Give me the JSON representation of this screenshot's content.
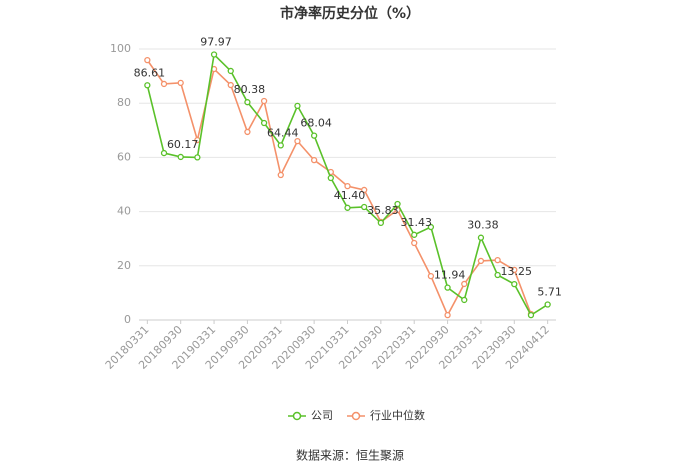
{
  "chart_data": {
    "type": "line",
    "title": "市净率历史分位（%）",
    "categories": [
      "20180331",
      null,
      "20180930",
      null,
      "20190331",
      null,
      "20190930",
      null,
      "20200331",
      null,
      "20200930",
      null,
      "20210331",
      null,
      "20210930",
      null,
      "20220331",
      null,
      "20220930",
      null,
      "20230331",
      null,
      "20230930",
      null,
      "20240412"
    ],
    "series": [
      {
        "name": "公司",
        "color": "#5ac12a",
        "values": [
          86.61,
          61.6,
          60.17,
          60.0,
          97.97,
          91.9,
          80.38,
          72.7,
          64.44,
          79.0,
          68.04,
          52.4,
          41.4,
          41.7,
          35.83,
          42.8,
          31.43,
          34.3,
          11.94,
          7.4,
          30.38,
          16.6,
          13.25,
          1.8,
          5.71
        ],
        "value_labels": [
          "86.61",
          null,
          "60.17",
          null,
          "97.97",
          null,
          "80.38",
          null,
          "64.44",
          null,
          "68.04",
          null,
          "41.40",
          null,
          "35.83",
          null,
          "31.43",
          null,
          "11.94",
          null,
          "30.38",
          null,
          "13.25",
          null,
          "5.71"
        ]
      },
      {
        "name": "行业中位数",
        "color": "#f4916a",
        "values": [
          95.9,
          87.1,
          87.5,
          66.4,
          92.6,
          86.7,
          69.4,
          80.8,
          53.5,
          66.0,
          59.0,
          54.6,
          49.4,
          48.0,
          36.2,
          40.6,
          28.4,
          16.2,
          1.8,
          13.3,
          21.8,
          22.1,
          18.5,
          2.2,
          null
        ]
      }
    ],
    "ylim": [
      0,
      100
    ],
    "yticks": [
      0,
      20,
      40,
      60,
      80,
      100
    ],
    "grid": true,
    "legend": "bottom",
    "source": "数据来源：恒生聚源"
  }
}
